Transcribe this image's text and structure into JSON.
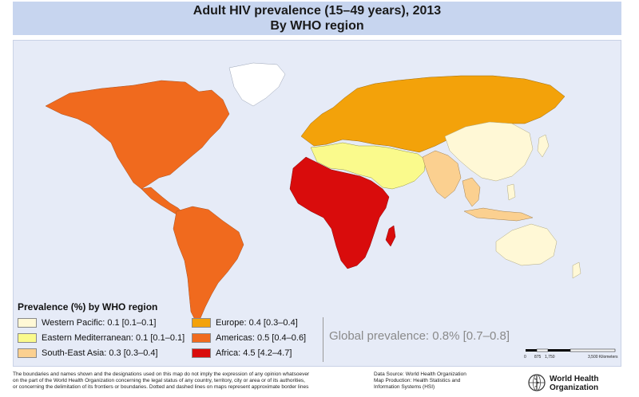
{
  "title": {
    "line1": "Adult HIV prevalence (15–49 years), 2013",
    "line2": "By WHO region"
  },
  "legend": {
    "title": "Prevalence (%) by WHO region",
    "items": [
      {
        "label": "Western Pacific: 0.1 [0.1–0.1]",
        "color": "#fff8d6"
      },
      {
        "label": "Eastern Mediterranean: 0.1 [0.1–0.1]",
        "color": "#fafa8c"
      },
      {
        "label": "South-East Asia: 0.3 [0.3–0.4]",
        "color": "#fbd090"
      },
      {
        "label": "Europe: 0.4 [0.3–0.4]",
        "color": "#f3a20a"
      },
      {
        "label": "Americas: 0.5 [0.4–0.6]",
        "color": "#f06a1e"
      },
      {
        "label": "Africa: 4.5 [4.2–4.7]",
        "color": "#d90c0c"
      }
    ]
  },
  "global_prevalence": "Global prevalence: 0.8% [0.7–0.8]",
  "scale_bar": {
    "ticks": [
      "0",
      "875",
      "1,750",
      "3,500 Kilometers"
    ]
  },
  "disclaimer": [
    "The boundaries and names shown and the designations used on this map do not imply the expression of any opinion whatsoever",
    "on the part of the World Health Organization concerning the legal status of any country, territory, city or area or of its authorities,",
    "or concerning the delimitation of its frontiers or boundaries. Dotted and dashed lines on maps represent approximate border lines"
  ],
  "source": [
    "Data Source: World Health Organization",
    "Map Production: Health Statistics and",
    "Information Systems (HSI)"
  ],
  "organization": {
    "line1": "World Health",
    "line2": "Organization"
  },
  "colors": {
    "ocean": "#e6ebf7",
    "greenland": "#ffffff",
    "banner": "#c7d5ef"
  }
}
